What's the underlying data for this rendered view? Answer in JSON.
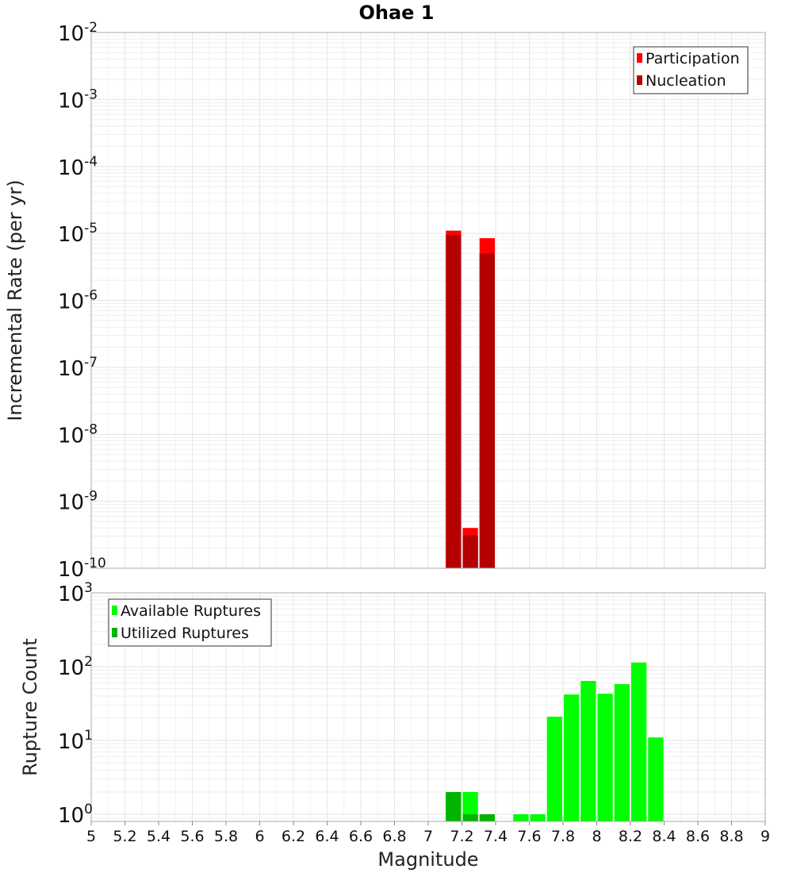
{
  "chart_data": {
    "title": "Ohae 1",
    "type": "bar",
    "xlabel": "Magnitude",
    "xlim": [
      5,
      9
    ],
    "x_ticks": [
      "5",
      "5.2",
      "5.4",
      "5.6",
      "5.8",
      "6",
      "6.2",
      "6.4",
      "6.6",
      "6.8",
      "7",
      "7.2",
      "7.4",
      "7.6",
      "7.8",
      "8",
      "8.2",
      "8.4",
      "8.6",
      "8.8",
      "9"
    ],
    "bin_width": 0.1,
    "panels": [
      {
        "id": "rate",
        "ylabel": "Incremental Rate (per yr)",
        "yscale": "log",
        "ylim": [
          1e-10,
          0.01
        ],
        "y_ticks": [
          {
            "base": "10",
            "exp": "-10",
            "value": 1e-10
          },
          {
            "base": "10",
            "exp": "-9",
            "value": 1e-09
          },
          {
            "base": "10",
            "exp": "-8",
            "value": 1e-08
          },
          {
            "base": "10",
            "exp": "-7",
            "value": 1e-07
          },
          {
            "base": "10",
            "exp": "-6",
            "value": 1e-06
          },
          {
            "base": "10",
            "exp": "-5",
            "value": 1e-05
          },
          {
            "base": "10",
            "exp": "-4",
            "value": 0.0001
          },
          {
            "base": "10",
            "exp": "-3",
            "value": 0.001
          },
          {
            "base": "10",
            "exp": "-2",
            "value": 0.01
          }
        ],
        "legend_position": "top-right",
        "series": [
          {
            "name": "Participation",
            "color": "#ff0000",
            "points": [
              {
                "x": 7.15,
                "y": 1.1e-05
              },
              {
                "x": 7.25,
                "y": 4e-10
              },
              {
                "x": 7.35,
                "y": 8.5e-06
              }
            ]
          },
          {
            "name": "Nucleation",
            "color": "#b40000",
            "points": [
              {
                "x": 7.15,
                "y": 9.5e-06
              },
              {
                "x": 7.25,
                "y": 3.1e-10
              },
              {
                "x": 7.35,
                "y": 5e-06
              }
            ]
          }
        ]
      },
      {
        "id": "count",
        "ylabel": "Rupture Count",
        "yscale": "log",
        "ylim": [
          0.8,
          1000
        ],
        "y_ticks": [
          {
            "base": "10",
            "exp": "0",
            "value": 1
          },
          {
            "base": "10",
            "exp": "1",
            "value": 10
          },
          {
            "base": "10",
            "exp": "2",
            "value": 100
          },
          {
            "base": "10",
            "exp": "3",
            "value": 1000
          }
        ],
        "legend_position": "top-left",
        "series": [
          {
            "name": "Available Ruptures",
            "color": "#00ff00",
            "points": [
              {
                "x": 7.15,
                "y": 2
              },
              {
                "x": 7.25,
                "y": 2
              },
              {
                "x": 7.35,
                "y": 1
              },
              {
                "x": 7.55,
                "y": 1
              },
              {
                "x": 7.65,
                "y": 1
              },
              {
                "x": 7.75,
                "y": 21
              },
              {
                "x": 7.85,
                "y": 42
              },
              {
                "x": 7.95,
                "y": 64
              },
              {
                "x": 8.05,
                "y": 43
              },
              {
                "x": 8.15,
                "y": 58
              },
              {
                "x": 8.25,
                "y": 114
              },
              {
                "x": 8.35,
                "y": 11
              }
            ]
          },
          {
            "name": "Utilized Ruptures",
            "color": "#00b400",
            "points": [
              {
                "x": 7.15,
                "y": 2
              },
              {
                "x": 7.25,
                "y": 1
              },
              {
                "x": 7.35,
                "y": 1
              }
            ]
          }
        ]
      }
    ]
  }
}
